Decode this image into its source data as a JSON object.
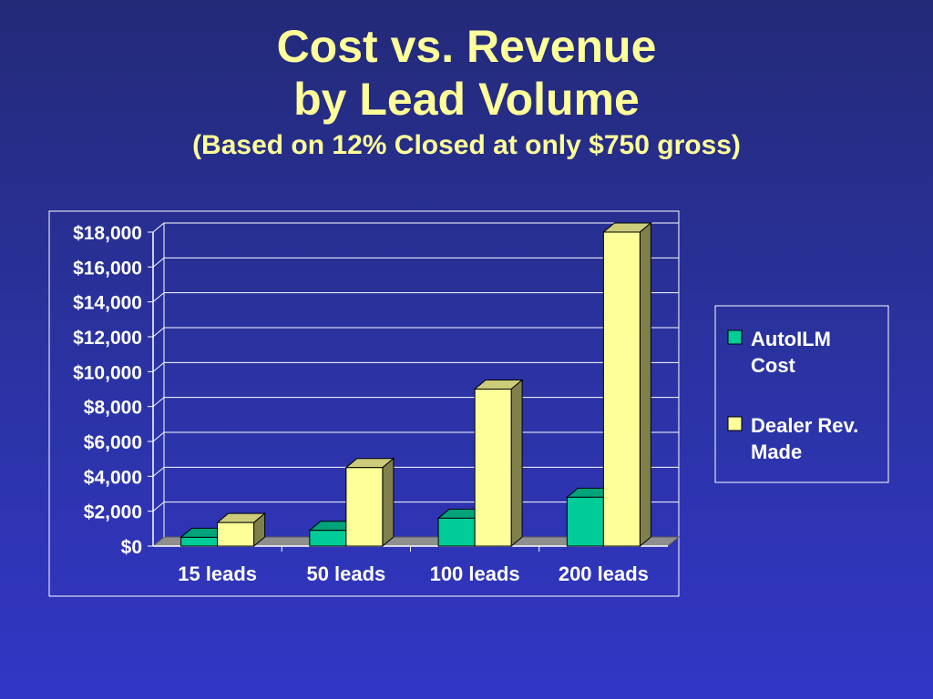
{
  "title": {
    "line1": "Cost vs. Revenue",
    "line2": "by Lead Volume",
    "subtitle": "(Based on 12% Closed at only $750 gross)"
  },
  "colors": {
    "background_top": "#232a78",
    "background_bottom": "#3236c6",
    "title": "#ffff99",
    "series_cost": "#00cc99",
    "series_revenue": "#ffff99",
    "axis_text": "#ffffff"
  },
  "chart_data": {
    "type": "bar",
    "categories": [
      "15 leads",
      "50 leads",
      "100 leads",
      "200 leads"
    ],
    "series": [
      {
        "name": "AutoILM Cost",
        "legend_lines": [
          "AutoILM",
          "Cost"
        ],
        "values": [
          500,
          900,
          1600,
          2800
        ]
      },
      {
        "name": "Dealer Rev. Made",
        "legend_lines": [
          "Dealer Rev.",
          "Made"
        ],
        "values": [
          1350,
          4500,
          9000,
          18000
        ]
      }
    ],
    "y_ticks": [
      "$0",
      "$2,000",
      "$4,000",
      "$6,000",
      "$8,000",
      "$10,000",
      "$12,000",
      "$14,000",
      "$16,000",
      "$18,000"
    ],
    "ylim": [
      0,
      18000
    ],
    "grid": true,
    "legend_position": "right",
    "style": "3d-clustered-column"
  }
}
